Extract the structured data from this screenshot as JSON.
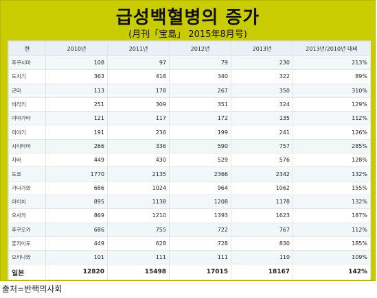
{
  "title": "급성백혈병의 증가",
  "subtitle": "(月刊「宝島」 2015年8月号)",
  "source": "출처=반핵의사회",
  "chart_data": {
    "type": "table",
    "columns": [
      "현",
      "2010년",
      "2011년",
      "2012년",
      "2013년",
      "2013년/2010년 대비"
    ],
    "rows": [
      [
        "후쿠시마",
        "108",
        "97",
        "79",
        "230",
        "213%"
      ],
      [
        "도치기",
        "363",
        "418",
        "340",
        "322",
        "89%"
      ],
      [
        "군마",
        "113",
        "178",
        "267",
        "350",
        "310%"
      ],
      [
        "비라키",
        "251",
        "309",
        "351",
        "324",
        "129%"
      ],
      [
        "야마가타",
        "121",
        "117",
        "172",
        "135",
        "112%"
      ],
      [
        "미야기",
        "191",
        "236",
        "199",
        "241",
        "126%"
      ],
      [
        "시이타마",
        "266",
        "336",
        "590",
        "757",
        "285%"
      ],
      [
        "지바",
        "449",
        "430",
        "529",
        "576",
        "128%"
      ],
      [
        "도쿄",
        "1770",
        "2135",
        "2366",
        "2342",
        "132%"
      ],
      [
        "가나가와",
        "686",
        "1024",
        "964",
        "1062",
        "155%"
      ],
      [
        "아이치",
        "895",
        "1138",
        "1208",
        "1178",
        "132%"
      ],
      [
        "오사카",
        "869",
        "1210",
        "1393",
        "1623",
        "187%"
      ],
      [
        "후쿠오카",
        "686",
        "755",
        "722",
        "767",
        "112%"
      ],
      [
        "홋카이도",
        "449",
        "628",
        "728",
        "830",
        "185%"
      ],
      [
        "오키나와",
        "101",
        "111",
        "111",
        "110",
        "109%"
      ]
    ],
    "total": [
      "일본",
      "12820",
      "15498",
      "17015",
      "18167",
      "142%"
    ]
  }
}
